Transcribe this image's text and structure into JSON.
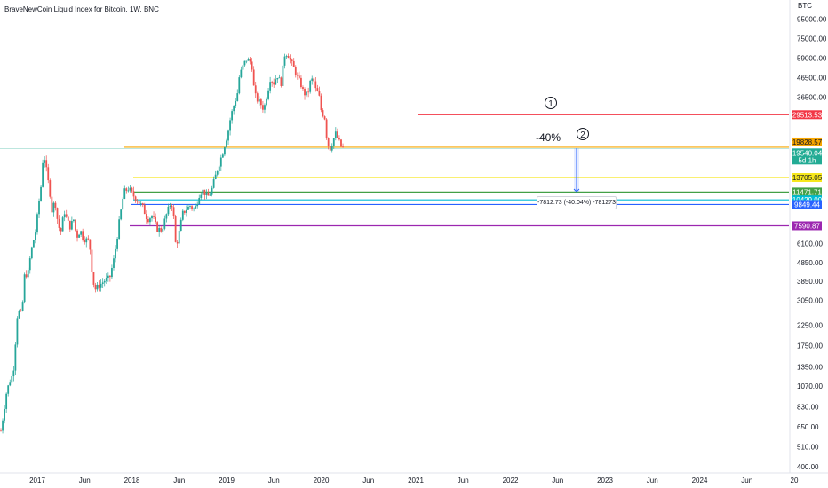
{
  "chart_data": {
    "type": "candlestick",
    "title": "BraveNewCoin Liquid Index for Bitcoin, 1W, BNC",
    "currency": "BTC",
    "scale": "log",
    "ylim": [
      370,
      110000
    ],
    "x_ticks": [
      "2017",
      "Jun",
      "2018",
      "Jun",
      "2019",
      "Jun",
      "2020",
      "Jun",
      "2021",
      "Jun",
      "2022",
      "Jun",
      "2023",
      "Jun",
      "2024",
      "Jun",
      "20"
    ],
    "y_ticks": [
      95000.0,
      75000.0,
      59000.0,
      46500.0,
      36500.0,
      6100.0,
      4850.0,
      3850.0,
      3050.0,
      2250.0,
      1750.0,
      1350.0,
      1070.0,
      830.0,
      650.0,
      510.0,
      400.0
    ],
    "price_path": [
      [
        0,
        620
      ],
      [
        0.03,
        780
      ],
      [
        0.06,
        1000
      ],
      [
        0.09,
        1120
      ],
      [
        0.13,
        1250
      ],
      [
        0.15,
        1700
      ],
      [
        0.17,
        2500
      ],
      [
        0.2,
        2700
      ],
      [
        0.22,
        2500
      ],
      [
        0.25,
        4100
      ],
      [
        0.29,
        4300
      ],
      [
        0.3,
        4800
      ],
      [
        0.33,
        5900
      ],
      [
        0.37,
        7200
      ],
      [
        0.4,
        10000
      ],
      [
        0.43,
        13000
      ],
      [
        0.45,
        19500
      ],
      [
        0.46,
        17500
      ],
      [
        0.49,
        14000
      ],
      [
        0.52,
        11200
      ],
      [
        0.54,
        9000
      ],
      [
        0.57,
        10500
      ],
      [
        0.6,
        8000
      ],
      [
        0.63,
        6900
      ],
      [
        0.67,
        9100
      ],
      [
        0.7,
        8100
      ],
      [
        0.73,
        7500
      ],
      [
        0.77,
        8200
      ],
      [
        0.8,
        6600
      ],
      [
        0.84,
        7200
      ],
      [
        0.87,
        6500
      ],
      [
        0.9,
        6400
      ],
      [
        0.93,
        6300
      ],
      [
        0.95,
        5400
      ],
      [
        0.97,
        3900
      ],
      [
        1.0,
        3500
      ],
      [
        1.05,
        3700
      ],
      [
        1.1,
        3900
      ],
      [
        1.15,
        4000
      ],
      [
        1.2,
        5200
      ],
      [
        1.25,
        7900
      ],
      [
        1.3,
        11500
      ],
      [
        1.35,
        12000
      ],
      [
        1.4,
        11000
      ],
      [
        1.45,
        10300
      ],
      [
        1.5,
        9500
      ],
      [
        1.55,
        8200
      ],
      [
        1.6,
        8600
      ],
      [
        1.65,
        7300
      ],
      [
        1.7,
        7200
      ],
      [
        1.75,
        8700
      ],
      [
        1.8,
        10200
      ],
      [
        1.82,
        9300
      ],
      [
        1.85,
        5800
      ],
      [
        1.88,
        6800
      ],
      [
        1.92,
        8800
      ],
      [
        1.96,
        9300
      ],
      [
        2.0,
        9700
      ],
      [
        2.05,
        9250
      ],
      [
        2.1,
        11300
      ],
      [
        2.14,
        11700
      ],
      [
        2.18,
        10700
      ],
      [
        2.22,
        11400
      ],
      [
        2.26,
        13500
      ],
      [
        2.3,
        15800
      ],
      [
        2.35,
        19000
      ],
      [
        2.4,
        23800
      ],
      [
        2.43,
        29000
      ],
      [
        2.47,
        34000
      ],
      [
        2.5,
        38500
      ],
      [
        2.52,
        47000
      ],
      [
        2.55,
        52000
      ],
      [
        2.57,
        55000
      ],
      [
        2.6,
        58500
      ],
      [
        2.62,
        57000
      ],
      [
        2.65,
        56000
      ],
      [
        2.68,
        38000
      ],
      [
        2.71,
        35500
      ],
      [
        2.75,
        33500
      ],
      [
        2.78,
        31500
      ],
      [
        2.82,
        39500
      ],
      [
        2.85,
        47000
      ],
      [
        2.88,
        43000
      ],
      [
        2.92,
        48000
      ],
      [
        2.96,
        43000
      ],
      [
        3.0,
        61500
      ],
      [
        3.03,
        63000
      ],
      [
        3.06,
        57000
      ],
      [
        3.1,
        52000
      ],
      [
        3.13,
        47000
      ],
      [
        3.17,
        43000
      ],
      [
        3.2,
        38500
      ],
      [
        3.24,
        37500
      ],
      [
        3.27,
        44000
      ],
      [
        3.3,
        46000
      ],
      [
        3.33,
        39500
      ],
      [
        3.36,
        38000
      ],
      [
        3.39,
        30000
      ],
      [
        3.42,
        29500
      ],
      [
        3.45,
        21000
      ],
      [
        3.48,
        19500
      ],
      [
        3.51,
        21500
      ],
      [
        3.54,
        23500
      ],
      [
        3.57,
        21500
      ],
      [
        3.6,
        19800
      ],
      [
        3.63,
        19540
      ]
    ],
    "horizontal_levels": [
      {
        "value": 29513.53,
        "label": "29513.53",
        "color": "#f23645"
      },
      {
        "value": 19828.57,
        "label": "19828.57",
        "color": "#f7a600"
      },
      {
        "value": 19540.04,
        "label": "19540.04",
        "color": "#22ab94"
      },
      {
        "value": 13705.05,
        "label": "13705.05",
        "color": "#f6e71d"
      },
      {
        "value": 11471.71,
        "label": "11471.71",
        "color": "#43a047"
      },
      {
        "value": 10429.0,
        "label": "10429.00",
        "color": "#00bcd4"
      },
      {
        "value": 9849.44,
        "label": "9849.44",
        "color": "#2962ff"
      },
      {
        "value": 7590.87,
        "label": "7590.87",
        "color": "#9c27b0"
      }
    ],
    "current_sub_label": "5d 1h",
    "annotations": {
      "marker_1": "1",
      "marker_2": "2",
      "percent_text": "-40%",
      "measure_text": "-7812.73 (-40.04%) -781273"
    },
    "colors": {
      "up": "#26a69a",
      "down": "#ef5350"
    }
  }
}
